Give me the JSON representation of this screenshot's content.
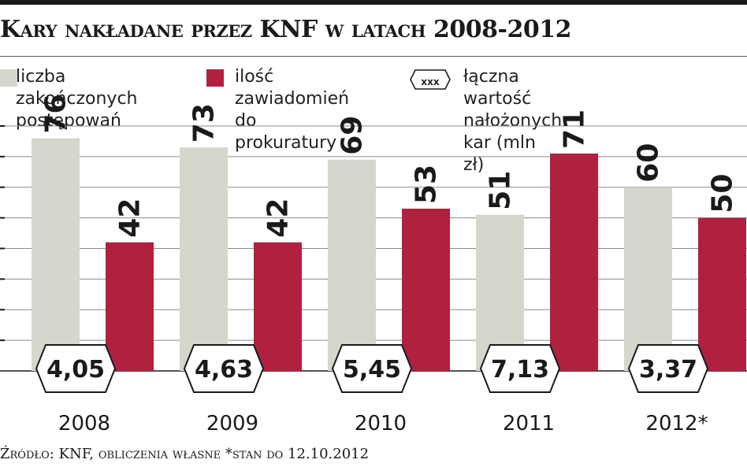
{
  "title": "Kary nakładane przez KNF w latach 2008-2012",
  "legend": {
    "items": [
      {
        "label": "liczba zakończonych\npostępowań",
        "color": "#d6d6cc"
      },
      {
        "label": "ilość zawiadomień\ndo prokuratury",
        "color": "#b0213f"
      },
      {
        "label": "łączna wartość\nnałożonych kar (mln zł)",
        "symbol": "xxx"
      }
    ]
  },
  "footnote": "Źródło: KNF, obliczenia własne *stan do 12.10.2012",
  "colors": {
    "grey_bar": "#d6d6cc",
    "red_bar": "#b0213f",
    "grid": "#8c8c8c",
    "text": "#1a1a1a"
  },
  "chart_data": {
    "type": "bar",
    "categories": [
      "2008",
      "2009",
      "2010",
      "2011",
      "2012*"
    ],
    "series": [
      {
        "name": "liczba zakończonych postępowań",
        "values": [
          76,
          73,
          69,
          51,
          60
        ],
        "value_labels": [
          "76",
          "73",
          "69",
          "51",
          "60"
        ]
      },
      {
        "name": "ilość zawiadomień do prokuratury",
        "values": [
          42,
          42,
          53,
          71,
          50
        ],
        "value_labels": [
          "42",
          "42",
          "53",
          "71",
          "50"
        ]
      }
    ],
    "fines": {
      "name": "łączna wartość nałożonych kar (mln zł)",
      "values": [
        4.05,
        4.63,
        5.45,
        7.13,
        3.37
      ],
      "labels": [
        "4,05",
        "4,63",
        "5,45",
        "7,13",
        "3,37"
      ]
    },
    "ylim": [
      0,
      80
    ],
    "grid": true,
    "legend_position": "top"
  }
}
